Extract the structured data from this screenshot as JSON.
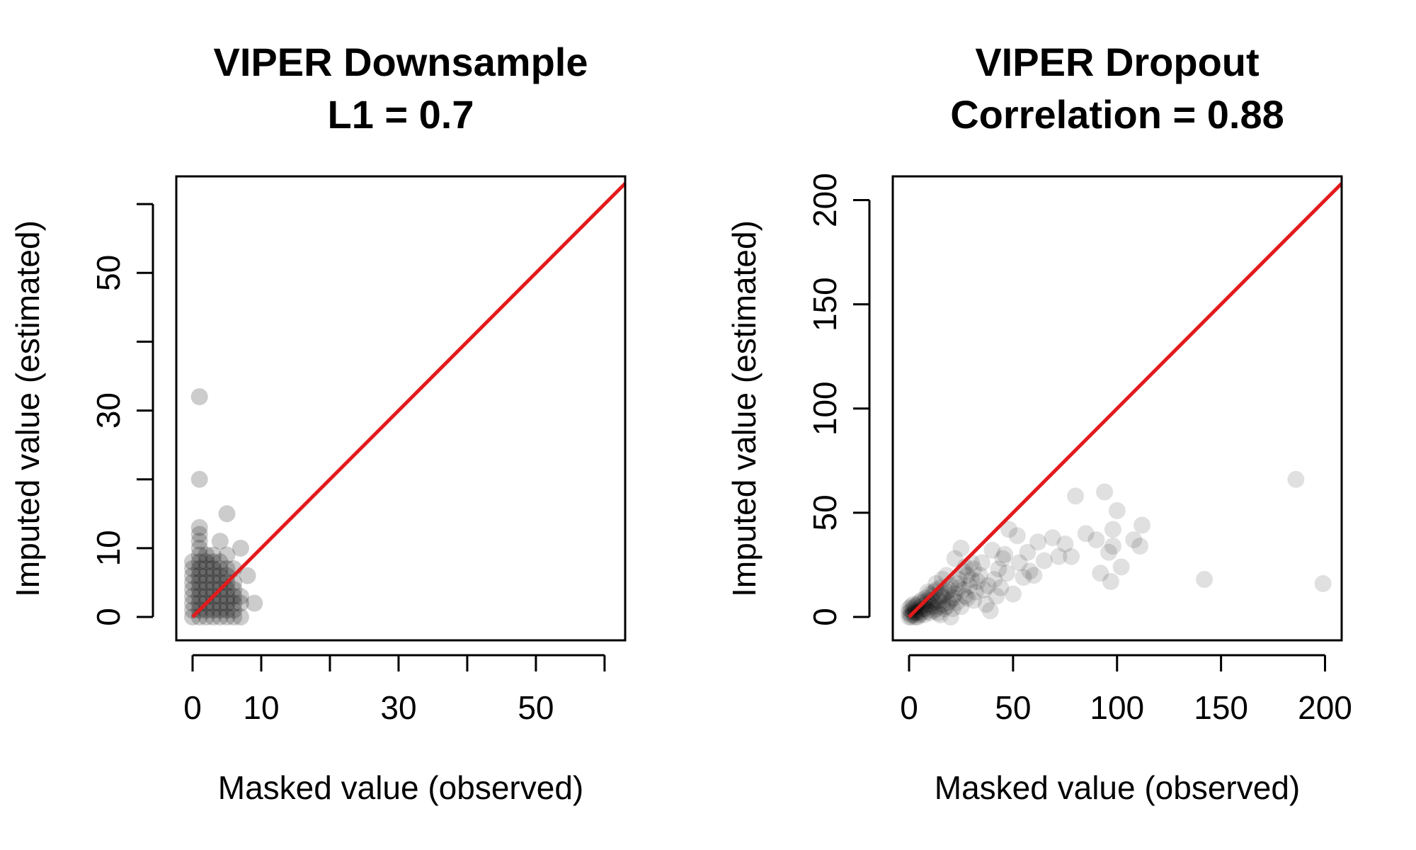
{
  "chart_data": [
    {
      "type": "scatter",
      "title": "VIPER Downsample",
      "subtitle": "L1 = 0.7",
      "xlabel": "Masked value (observed)",
      "ylabel": "Imputed value (estimated)",
      "xlim": [
        0,
        63
      ],
      "ylim": [
        0,
        63
      ],
      "x_ticks": [
        0,
        10,
        20,
        30,
        40,
        50,
        60
      ],
      "x_tick_labels": [
        "0",
        "10",
        "",
        "30",
        "",
        "50",
        ""
      ],
      "y_ticks": [
        0,
        10,
        20,
        30,
        40,
        50,
        60
      ],
      "y_tick_labels": [
        "0",
        "10",
        "",
        "30",
        "",
        "50",
        ""
      ],
      "point_color": "#000000",
      "point_alpha": 0.2,
      "reference_line": {
        "x": [
          0,
          63
        ],
        "y": [
          0,
          63
        ],
        "color": "#e31a1c"
      },
      "points": [
        [
          1,
          32
        ],
        [
          1,
          20
        ],
        [
          5,
          15
        ],
        [
          4,
          11
        ],
        [
          1,
          13
        ],
        [
          1,
          12
        ],
        [
          1,
          11
        ],
        [
          1,
          10
        ],
        [
          7,
          10
        ],
        [
          9,
          2
        ],
        [
          7,
          3
        ],
        [
          7,
          2
        ],
        [
          6,
          4
        ],
        [
          6,
          5
        ],
        [
          5,
          9
        ],
        [
          3,
          9
        ],
        [
          2,
          9
        ],
        [
          6,
          7
        ],
        [
          8,
          6
        ],
        [
          7,
          0
        ],
        [
          6,
          1
        ],
        [
          0,
          0
        ],
        [
          0,
          1
        ],
        [
          0,
          2
        ],
        [
          0,
          3
        ],
        [
          0,
          4
        ],
        [
          0,
          5
        ],
        [
          0,
          6
        ],
        [
          0,
          7
        ],
        [
          0,
          8
        ],
        [
          1,
          0
        ],
        [
          1,
          1
        ],
        [
          1,
          2
        ],
        [
          1,
          3
        ],
        [
          1,
          4
        ],
        [
          1,
          5
        ],
        [
          1,
          6
        ],
        [
          1,
          7
        ],
        [
          1,
          8
        ],
        [
          1,
          9
        ],
        [
          2,
          0
        ],
        [
          2,
          1
        ],
        [
          2,
          2
        ],
        [
          2,
          3
        ],
        [
          2,
          4
        ],
        [
          2,
          5
        ],
        [
          2,
          6
        ],
        [
          2,
          7
        ],
        [
          2,
          8
        ],
        [
          3,
          0
        ],
        [
          3,
          1
        ],
        [
          3,
          2
        ],
        [
          3,
          3
        ],
        [
          3,
          4
        ],
        [
          3,
          5
        ],
        [
          3,
          6
        ],
        [
          3,
          7
        ],
        [
          3,
          8
        ],
        [
          4,
          0
        ],
        [
          4,
          1
        ],
        [
          4,
          2
        ],
        [
          4,
          3
        ],
        [
          4,
          4
        ],
        [
          4,
          5
        ],
        [
          4,
          6
        ],
        [
          4,
          7
        ],
        [
          4,
          8
        ],
        [
          5,
          0
        ],
        [
          5,
          1
        ],
        [
          5,
          2
        ],
        [
          5,
          3
        ],
        [
          5,
          4
        ],
        [
          5,
          5
        ],
        [
          5,
          6
        ],
        [
          5,
          7
        ],
        [
          6,
          0
        ],
        [
          6,
          2
        ],
        [
          6,
          3
        ]
      ]
    },
    {
      "type": "scatter",
      "title": "VIPER Dropout",
      "subtitle": "Correlation = 0.88",
      "xlabel": "Masked value (observed)",
      "ylabel": "Imputed value (estimated)",
      "xlim": [
        0,
        208
      ],
      "ylim": [
        0,
        208
      ],
      "x_ticks": [
        0,
        50,
        100,
        150,
        200
      ],
      "x_tick_labels": [
        "0",
        "50",
        "100",
        "150",
        "200"
      ],
      "y_ticks": [
        0,
        50,
        100,
        150,
        200
      ],
      "y_tick_labels": [
        "0",
        "50",
        "100",
        "150",
        "200"
      ],
      "point_color": "#000000",
      "point_alpha": 0.12,
      "reference_line": {
        "x": [
          0,
          208
        ],
        "y": [
          0,
          208
        ],
        "color": "#e31a1c"
      },
      "points": [
        [
          186,
          66
        ],
        [
          199,
          16
        ],
        [
          142,
          18
        ],
        [
          94,
          60
        ],
        [
          80,
          58
        ],
        [
          100,
          51
        ],
        [
          112,
          44
        ],
        [
          98,
          42
        ],
        [
          108,
          37
        ],
        [
          111,
          34
        ],
        [
          85,
          40
        ],
        [
          90,
          37
        ],
        [
          75,
          35
        ],
        [
          78,
          29
        ],
        [
          92,
          21
        ],
        [
          97,
          17
        ],
        [
          102,
          24
        ],
        [
          96,
          31
        ],
        [
          98,
          34
        ],
        [
          72,
          29
        ],
        [
          69,
          38
        ],
        [
          62,
          36
        ],
        [
          48,
          42
        ],
        [
          52,
          39
        ],
        [
          58,
          22
        ],
        [
          55,
          19
        ],
        [
          50,
          11
        ],
        [
          45,
          28
        ],
        [
          43,
          23
        ],
        [
          46,
          30
        ],
        [
          40,
          32
        ],
        [
          38,
          15
        ],
        [
          42,
          10
        ],
        [
          39,
          3
        ],
        [
          35,
          26
        ],
        [
          34,
          20
        ],
        [
          30,
          26
        ],
        [
          32,
          12
        ],
        [
          28,
          20
        ],
        [
          25,
          33
        ],
        [
          26,
          22
        ],
        [
          22,
          28
        ],
        [
          24,
          14
        ],
        [
          20,
          8
        ],
        [
          18,
          20
        ],
        [
          16,
          18
        ],
        [
          15,
          10
        ],
        [
          13,
          16
        ],
        [
          12,
          12
        ],
        [
          10,
          6
        ],
        [
          14,
          2
        ],
        [
          20,
          0
        ],
        [
          11,
          10
        ],
        [
          9,
          8
        ],
        [
          8,
          4
        ],
        [
          7,
          7
        ],
        [
          6,
          5
        ],
        [
          5,
          3
        ],
        [
          4,
          6
        ],
        [
          3,
          2
        ],
        [
          2,
          4
        ],
        [
          1,
          1
        ],
        [
          0,
          0
        ],
        [
          1,
          3
        ],
        [
          2,
          1
        ],
        [
          3,
          5
        ],
        [
          4,
          2
        ],
        [
          5,
          7
        ],
        [
          6,
          2
        ],
        [
          7,
          4
        ],
        [
          8,
          9
        ],
        [
          9,
          3
        ],
        [
          10,
          11
        ],
        [
          11,
          5
        ],
        [
          12,
          7
        ],
        [
          13,
          4
        ],
        [
          14,
          8
        ],
        [
          15,
          14
        ],
        [
          16,
          6
        ],
        [
          17,
          11
        ],
        [
          18,
          5
        ],
        [
          19,
          13
        ],
        [
          21,
          9
        ],
        [
          23,
          7
        ],
        [
          24,
          18
        ],
        [
          27,
          10
        ],
        [
          29,
          15
        ],
        [
          31,
          8
        ],
        [
          33,
          17
        ],
        [
          36,
          13
        ],
        [
          37,
          6
        ],
        [
          41,
          18
        ],
        [
          44,
          14
        ],
        [
          47,
          21
        ],
        [
          53,
          26
        ],
        [
          57,
          31
        ],
        [
          60,
          20
        ],
        [
          65,
          27
        ],
        [
          0,
          2
        ],
        [
          1,
          0
        ],
        [
          2,
          2
        ],
        [
          3,
          0
        ],
        [
          0,
          4
        ],
        [
          1,
          5
        ],
        [
          2,
          6
        ],
        [
          3,
          3
        ],
        [
          4,
          0
        ],
        [
          5,
          1
        ],
        [
          6,
          8
        ],
        [
          7,
          1
        ],
        [
          8,
          6
        ],
        [
          9,
          12
        ],
        [
          10,
          2
        ],
        [
          11,
          8
        ],
        [
          12,
          3
        ],
        [
          13,
          13
        ],
        [
          14,
          5
        ],
        [
          15,
          1
        ],
        [
          16,
          10
        ],
        [
          17,
          4
        ],
        [
          18,
          12
        ],
        [
          19,
          7
        ],
        [
          20,
          15
        ],
        [
          21,
          4
        ],
        [
          22,
          11
        ],
        [
          23,
          16
        ],
        [
          25,
          5
        ],
        [
          26,
          13
        ],
        [
          27,
          24
        ],
        [
          28,
          9
        ],
        [
          30,
          18
        ],
        [
          31,
          23
        ]
      ]
    }
  ]
}
